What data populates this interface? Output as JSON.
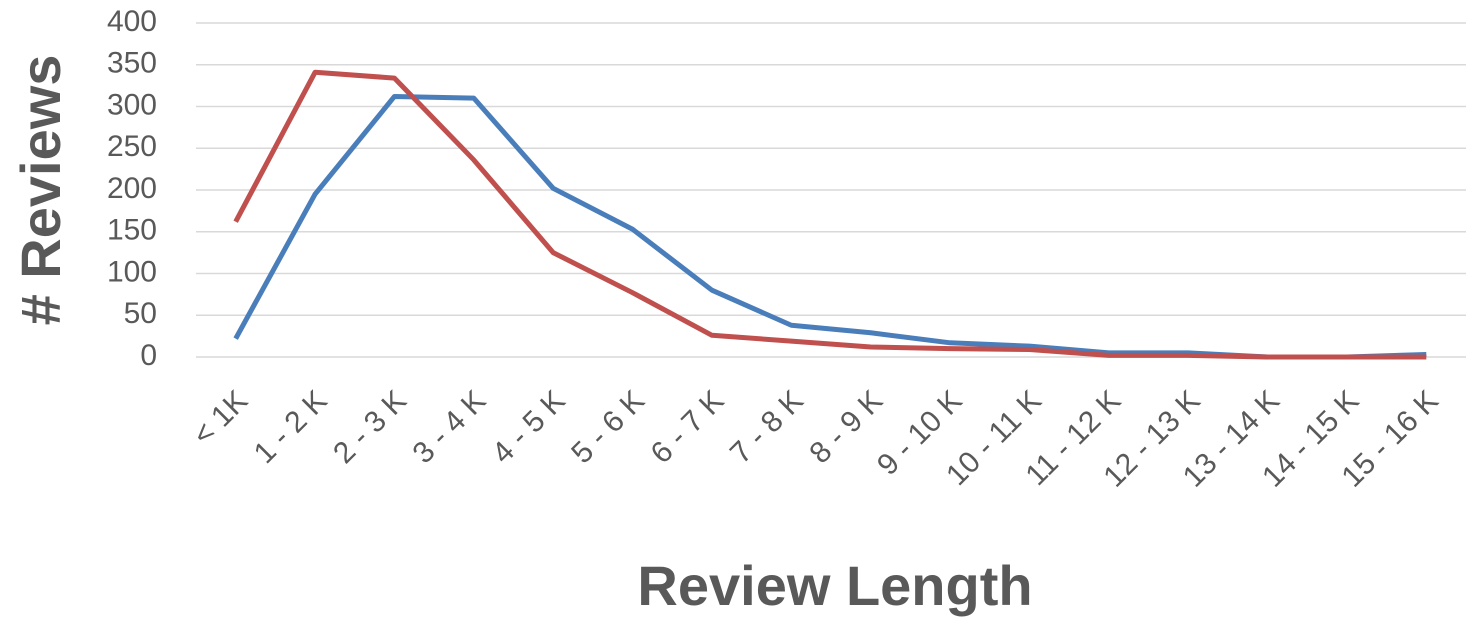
{
  "chart_data": {
    "type": "line",
    "x_label": "Review Length",
    "y_label": "# Reviews",
    "categories": [
      "< 1K",
      "1 - 2 K",
      "2 - 3 K",
      "3 - 4 K",
      "4 - 5 K",
      "5 - 6 K",
      "6 - 7 K",
      "7 - 8 K",
      "8 - 9 K",
      "9 - 10 K",
      "10 - 11 K",
      "11 - 12 K",
      "12 - 13 K",
      "13 - 14 K",
      "14 - 15 K",
      "15 - 16 K"
    ],
    "series": [
      {
        "color": "#4a7ebb",
        "values": [
          22,
          195,
          312,
          310,
          202,
          153,
          80,
          38,
          29,
          17,
          13,
          5,
          5,
          0,
          0,
          3
        ]
      },
      {
        "color": "#c0504d",
        "values": [
          162,
          341,
          334,
          236,
          125,
          77,
          26,
          19,
          12,
          10,
          9,
          2,
          2,
          0,
          0,
          0
        ]
      }
    ],
    "ylim": [
      0,
      400
    ],
    "yticks": [
      0,
      50,
      100,
      150,
      200,
      250,
      300,
      350,
      400
    ],
    "grid": true
  }
}
